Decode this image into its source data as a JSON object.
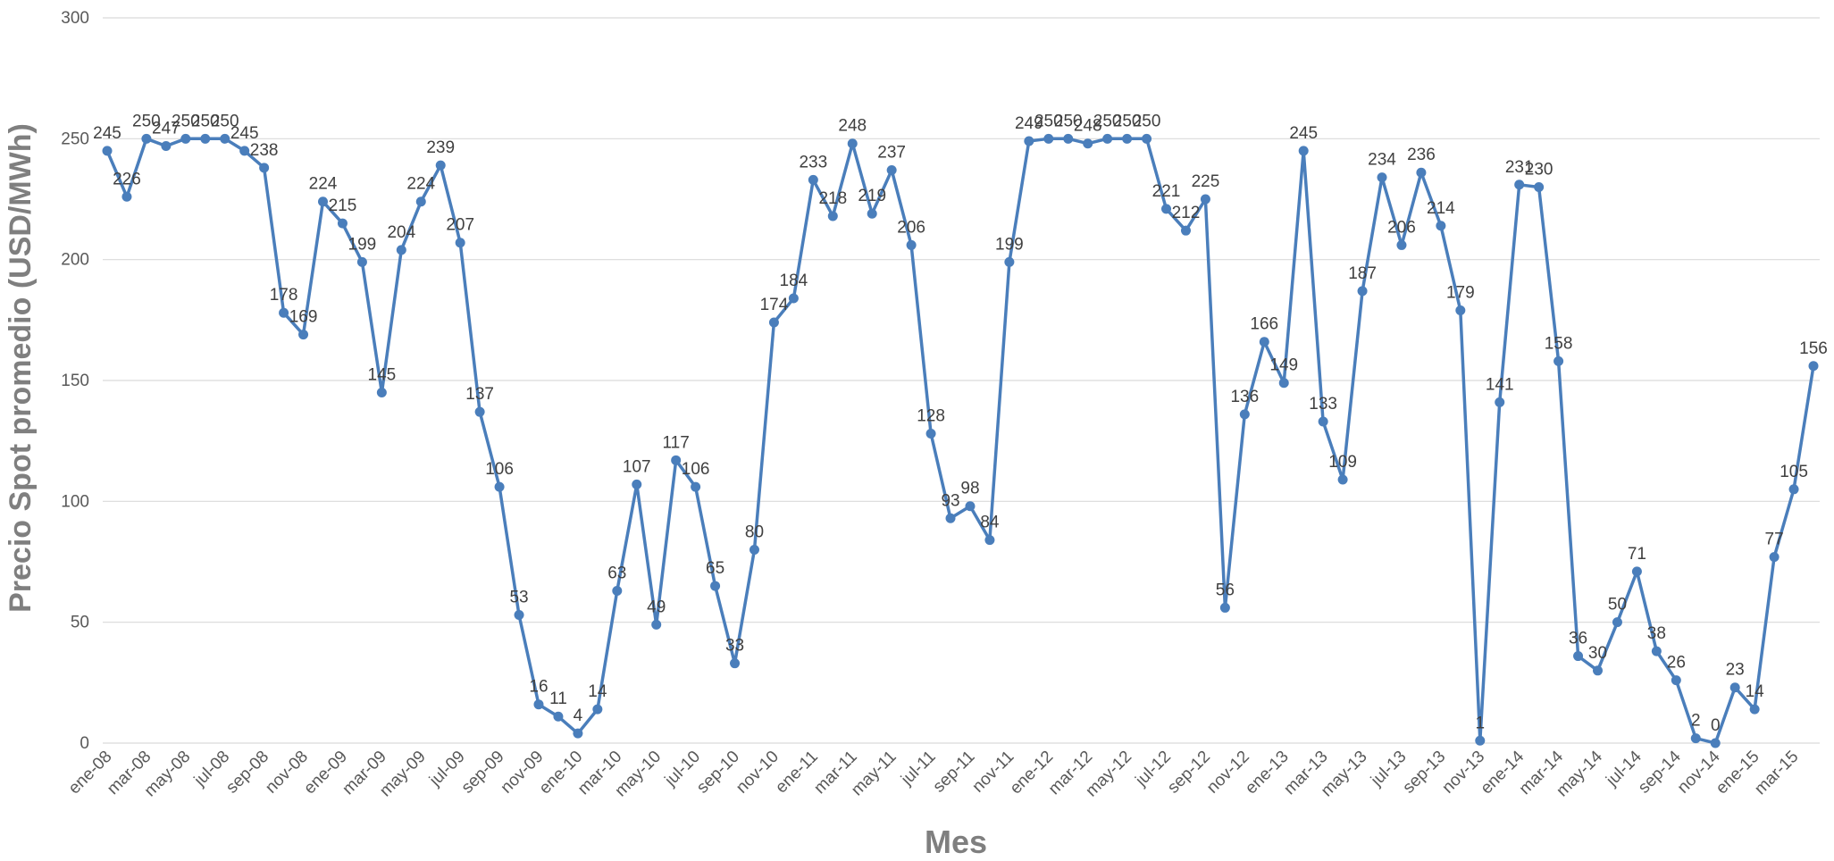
{
  "chart_data": {
    "type": "line",
    "xlabel": "Mes",
    "ylabel": "Precio Spot promedio (USD/MWh)",
    "ylim": [
      0,
      300
    ],
    "yticks": [
      0,
      50,
      100,
      150,
      200,
      250,
      300
    ],
    "grid": true,
    "legend": "none",
    "color": "#4a7ebb",
    "x": [
      "ene-08",
      "feb-08",
      "mar-08",
      "abr-08",
      "may-08",
      "jun-08",
      "jul-08",
      "ago-08",
      "sep-08",
      "oct-08",
      "nov-08",
      "dic-08",
      "ene-09",
      "feb-09",
      "mar-09",
      "abr-09",
      "may-09",
      "jun-09",
      "jul-09",
      "ago-09",
      "sep-09",
      "oct-09",
      "nov-09",
      "dic-09",
      "ene-10",
      "feb-10",
      "mar-10",
      "abr-10",
      "may-10",
      "jun-10",
      "jul-10",
      "ago-10",
      "sep-10",
      "oct-10",
      "nov-10",
      "dic-10",
      "ene-11",
      "feb-11",
      "mar-11",
      "abr-11",
      "may-11",
      "jun-11",
      "jul-11",
      "ago-11",
      "sep-11",
      "oct-11",
      "nov-11",
      "dic-11",
      "ene-12",
      "feb-12",
      "mar-12",
      "abr-12",
      "may-12",
      "jun-12",
      "jul-12",
      "ago-12",
      "sep-12",
      "oct-12",
      "nov-12",
      "dic-12",
      "ene-13",
      "feb-13",
      "mar-13",
      "abr-13",
      "may-13",
      "jun-13",
      "jul-13",
      "ago-13",
      "sep-13",
      "oct-13",
      "nov-13",
      "dic-13",
      "ene-14",
      "feb-14",
      "mar-14",
      "abr-14",
      "may-14",
      "jun-14",
      "jul-14",
      "ago-14",
      "sep-14",
      "oct-14",
      "nov-14",
      "dic-14",
      "ene-15",
      "feb-15",
      "mar-15",
      "abr-15"
    ],
    "xtick_labels": [
      "ene-08",
      "mar-08",
      "may-08",
      "jul-08",
      "sep-08",
      "nov-08",
      "ene-09",
      "mar-09",
      "may-09",
      "jul-09",
      "sep-09",
      "nov-09",
      "ene-10",
      "mar-10",
      "may-10",
      "jul-10",
      "sep-10",
      "nov-10",
      "ene-11",
      "mar-11",
      "may-11",
      "jul-11",
      "sep-11",
      "nov-11",
      "ene-12",
      "mar-12",
      "may-12",
      "jul-12",
      "sep-12",
      "nov-12",
      "ene-13",
      "mar-13",
      "may-13",
      "jul-13",
      "sep-13",
      "nov-13",
      "ene-14",
      "mar-14",
      "may-14",
      "jul-14",
      "sep-14",
      "nov-14",
      "ene-15",
      "mar-15"
    ],
    "values": [
      245,
      226,
      250,
      247,
      250,
      250,
      250,
      245,
      238,
      178,
      169,
      224,
      215,
      199,
      145,
      204,
      224,
      239,
      207,
      137,
      106,
      53,
      16,
      11,
      4,
      14,
      63,
      107,
      49,
      117,
      106,
      65,
      33,
      80,
      174,
      184,
      233,
      218,
      248,
      219,
      237,
      206,
      128,
      93,
      98,
      84,
      199,
      249,
      250,
      250,
      248,
      250,
      250,
      250,
      221,
      212,
      225,
      56,
      136,
      166,
      149,
      245,
      133,
      109,
      187,
      234,
      206,
      236,
      214,
      179,
      1,
      141,
      231,
      230,
      158,
      36,
      30,
      50,
      71,
      38,
      26,
      2,
      0,
      23,
      14,
      77,
      105,
      156
    ]
  }
}
